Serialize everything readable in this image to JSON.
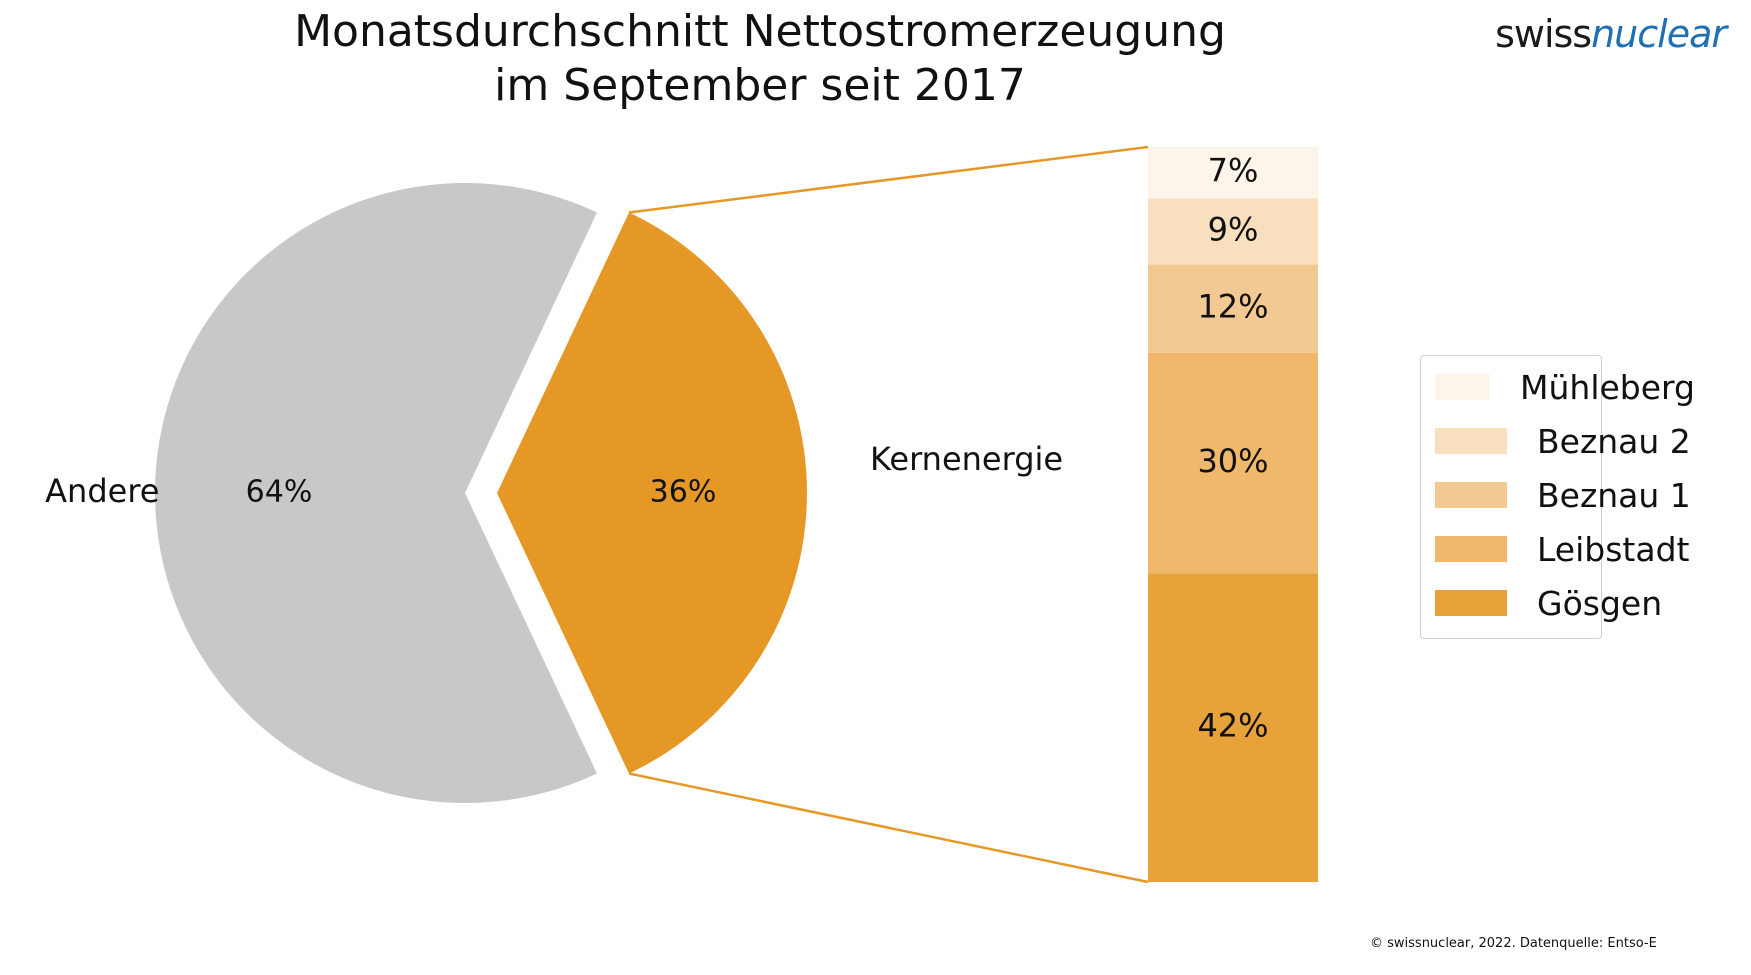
{
  "title_line1": "Monatsdurchschnitt Nettostromerzeugung",
  "title_line2": "im September seit 2017",
  "logo": {
    "part1": "swiss",
    "part2": "nuclear"
  },
  "footer": "© swissnuclear, 2022. Datenquelle: Entso-E",
  "colors": {
    "andere": "#c8c8c8",
    "kernenergie": "#e69826",
    "muehleberg": "#fdf4ea",
    "beznau2": "#f8dfbd",
    "beznau1": "#f3c993",
    "leibstadt": "#efb86b",
    "goesgen": "#e8a23a",
    "connector": "#e69826"
  },
  "chart_data": [
    {
      "type": "pie",
      "slices": [
        {
          "label": "Andere",
          "value": 64,
          "value_label": "64%"
        },
        {
          "label": "Kernenergie",
          "value": 36,
          "value_label": "36%"
        }
      ]
    },
    {
      "type": "bar",
      "stacked": true,
      "series": [
        {
          "name": "Gösgen",
          "value": 42,
          "value_label": "42%"
        },
        {
          "name": "Leibstadt",
          "value": 30,
          "value_label": "30%"
        },
        {
          "name": "Beznau 1",
          "value": 12,
          "value_label": "12%"
        },
        {
          "name": "Beznau 2",
          "value": 9,
          "value_label": "9%"
        },
        {
          "name": "Mühleberg",
          "value": 7,
          "value_label": "7%"
        }
      ],
      "legend": [
        "Mühleberg",
        "Beznau 2",
        "Beznau 1",
        "Leibstadt",
        "Gösgen"
      ],
      "legend_placement": "right"
    }
  ]
}
